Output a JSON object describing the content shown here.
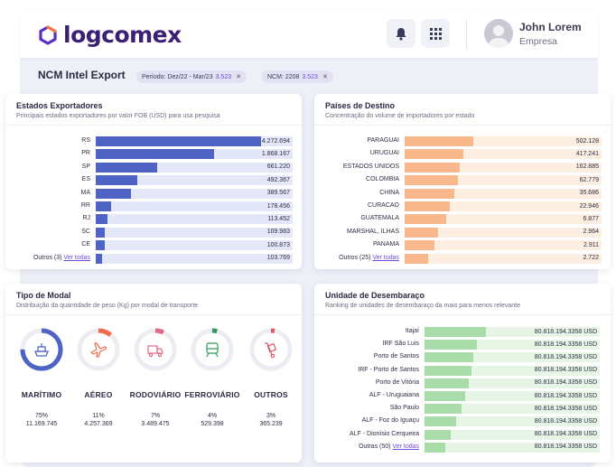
{
  "header": {
    "logo_text": "logcomex",
    "user_name": "John Lorem",
    "user_role": "Empresa",
    "brand_color": "#5b2fc4"
  },
  "subbar": {
    "title": "NCM Intel Export",
    "filters": [
      {
        "label": "Período: Dez/22 - Mar/23",
        "count": "3.523"
      },
      {
        "label": "NCM: 2208",
        "count": "3.523"
      }
    ]
  },
  "estados": {
    "title": "Estados Exportadores",
    "subtitle": "Principais estados exportadores por valor FOB (USD) para usa pesquisa",
    "color": "#4f63c4",
    "track": "#e3e7f8",
    "rows": [
      {
        "label": "RS",
        "value": "4.272.694",
        "fraction": 0.84
      },
      {
        "label": "PR",
        "value": "1.868.167",
        "fraction": 0.6
      },
      {
        "label": "SP",
        "value": "661.220",
        "fraction": 0.31
      },
      {
        "label": "ES",
        "value": "492.367",
        "fraction": 0.21
      },
      {
        "label": "MA",
        "value": "389.567",
        "fraction": 0.18
      },
      {
        "label": "RR",
        "value": "178.456",
        "fraction": 0.08
      },
      {
        "label": "RJ",
        "value": "113.452",
        "fraction": 0.06
      },
      {
        "label": "SC",
        "value": "109.983",
        "fraction": 0.045
      },
      {
        "label": "CE",
        "value": "100.873",
        "fraction": 0.045
      },
      {
        "label": "Outros (3)",
        "link": "Ver todas",
        "value": "103.769",
        "fraction": 0.03
      }
    ]
  },
  "paises": {
    "title": "Países de Destino",
    "subtitle": "Concentração do volume de importadores por estado",
    "color": "#f9b78c",
    "track": "#fdeee2",
    "rows": [
      {
        "label": "PARAGUAI",
        "value": "502.128",
        "fraction": 0.35
      },
      {
        "label": "URUGUAI",
        "value": "417.241",
        "fraction": 0.3
      },
      {
        "label": "ESTADOS UNIDOS",
        "value": "162.885",
        "fraction": 0.28
      },
      {
        "label": "COLOMBIA",
        "value": "62.779",
        "fraction": 0.27
      },
      {
        "label": "CHINA",
        "value": "35.686",
        "fraction": 0.25
      },
      {
        "label": "CURACAO",
        "value": "22.946",
        "fraction": 0.23
      },
      {
        "label": "GUATEMALA",
        "value": "6.877",
        "fraction": 0.21
      },
      {
        "label": "MARSHAL, ILHAS",
        "value": "2.964",
        "fraction": 0.17
      },
      {
        "label": "PANAMA",
        "value": "2.911",
        "fraction": 0.15
      },
      {
        "label": "Outros (25)",
        "link": "Ver todas",
        "value": "2.722",
        "fraction": 0.12
      }
    ]
  },
  "modal": {
    "title": "Tipo de Modal",
    "subtitle": "Distribuição da quantidade de peso (Kg) por modal de transporte",
    "items": [
      {
        "name": "MARÍTIMO",
        "pct": "75%",
        "weight": "11.169.745",
        "fraction": 0.75,
        "color": "#4f63c4",
        "icon": "ship-icon"
      },
      {
        "name": "AÉREO",
        "pct": "11%",
        "weight": "4.257.369",
        "fraction": 0.11,
        "color": "#ef6b4a",
        "icon": "airplane-icon"
      },
      {
        "name": "RODOVIÁRIO",
        "pct": "7%",
        "weight": "3.489.475",
        "fraction": 0.07,
        "color": "#e06a86",
        "icon": "truck-icon"
      },
      {
        "name": "FERROVIÁRIO",
        "pct": "4%",
        "weight": "529.398",
        "fraction": 0.04,
        "color": "#2e9a5a",
        "icon": "train-icon"
      },
      {
        "name": "OUTROS",
        "pct": "3%",
        "weight": "365.239",
        "fraction": 0.03,
        "color": "#e05a6a",
        "icon": "hand-truck-icon"
      }
    ]
  },
  "unidade": {
    "title": "Unidade de Desembaraço",
    "subtitle": "Ranking de unidades de desembaraço da mais para menos relevante",
    "color": "#a9dca9",
    "track": "#e7f5e7",
    "rows": [
      {
        "label": "Itajaí",
        "value": "80.818.194.3358 USD",
        "fraction": 0.35
      },
      {
        "label": "IRF São Luis",
        "value": "80.818.194.3358 USD",
        "fraction": 0.3
      },
      {
        "label": "Porto de Santos",
        "value": "80.818.194.3358 USD",
        "fraction": 0.28
      },
      {
        "label": "IRF - Porto de Santos",
        "value": "80.818.194.3358 USD",
        "fraction": 0.27
      },
      {
        "label": "Porto de Vitória",
        "value": "80.818.194.3358 USD",
        "fraction": 0.25
      },
      {
        "label": "ALF - Uruguaiana",
        "value": "80.818.194.3358 USD",
        "fraction": 0.23
      },
      {
        "label": "São Paulo",
        "value": "80.818.194.3358 USD",
        "fraction": 0.21
      },
      {
        "label": "ALF - Foz do Iguaçu",
        "value": "80.818.194.3358 USD",
        "fraction": 0.18
      },
      {
        "label": "ALF - Dionísio Cerqueira",
        "value": "80.818.194.3358 USD",
        "fraction": 0.15
      },
      {
        "label": "Outras (50)",
        "link": "Ver todas",
        "value": "80.818.194.3358 USD",
        "fraction": 0.12
      }
    ]
  }
}
